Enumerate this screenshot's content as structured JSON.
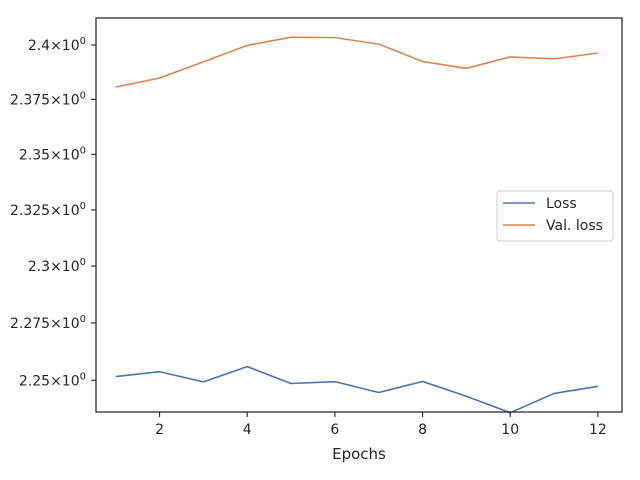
{
  "chart_data": {
    "type": "line",
    "title": "",
    "xlabel": "Epochs",
    "ylabel": "",
    "yscale": "log",
    "xlim": [
      0.55,
      12.55
    ],
    "ylim": [
      2.2363,
      2.4125
    ],
    "xticks": [
      2,
      4,
      6,
      8,
      10,
      12
    ],
    "yticks": [
      {
        "value": 2.25,
        "mantissa": "2.25"
      },
      {
        "value": 2.275,
        "mantissa": "2.275"
      },
      {
        "value": 2.3,
        "mantissa": "2.3"
      },
      {
        "value": 2.325,
        "mantissa": "2.325"
      },
      {
        "value": 2.35,
        "mantissa": "2.35"
      },
      {
        "value": 2.375,
        "mantissa": "2.375"
      },
      {
        "value": 2.4,
        "mantissa": "2.4"
      }
    ],
    "ytick_suffix": "×10",
    "ytick_exponent": "0",
    "grid": false,
    "legend_position": "center-right",
    "x": [
      1,
      2,
      3,
      4,
      5,
      6,
      7,
      8,
      9,
      10,
      11,
      12
    ],
    "series": [
      {
        "name": "Loss",
        "color": "#4c72b0",
        "values": [
          2.2516,
          2.2537,
          2.2493,
          2.2559,
          2.2486,
          2.2494,
          2.2447,
          2.2495,
          2.2431,
          2.236,
          2.2443,
          2.2474
        ]
      },
      {
        "name": "Val. loss",
        "color": "#dd8452",
        "values": [
          2.3806,
          2.3848,
          2.3922,
          2.3998,
          2.4036,
          2.4034,
          2.4004,
          2.3924,
          2.3892,
          2.3945,
          2.3936,
          2.3963
        ]
      }
    ]
  }
}
